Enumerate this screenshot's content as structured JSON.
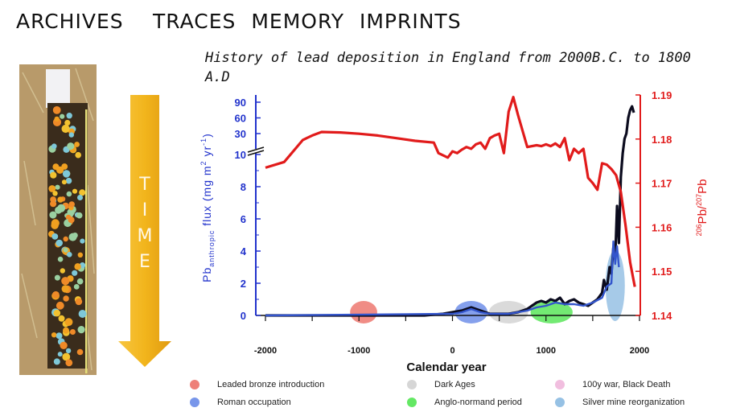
{
  "page": {
    "heading_archives": "ARCHIVES",
    "heading_traces": "TRACES MEMORY IMPRINTS",
    "time_arrow_letters": [
      "T",
      "I",
      "M",
      "E"
    ],
    "colors": {
      "arrow": "#f2b51c",
      "left_axis": "#2233cc",
      "right_axis": "#e11b1b",
      "flux_line": "#0b0b1e"
    },
    "photo_icon": "soil-core-photo"
  },
  "chart_data": {
    "type": "line",
    "title": "History of lead deposition in England  from 2000B.C. to 1800 A.D",
    "xlabel": "Calendar year",
    "xlim": [
      -2300,
      2000
    ],
    "xticks": [
      -2000,
      -1000,
      0,
      1000,
      2000
    ],
    "left_axis": {
      "label_main": "Pb",
      "label_sub": "anthropic",
      "label_rest": " flux (mg m",
      "label_sup1": "2",
      "label_rest2": " yr",
      "label_sup2": "-1",
      "label_end": ")",
      "lower_ticks": [
        0,
        2,
        4,
        6,
        8,
        10
      ],
      "upper_ticks": [
        30,
        60,
        90
      ],
      "break_between": [
        10,
        30
      ],
      "color": "#2233cc"
    },
    "right_axis": {
      "label_sup1": "206",
      "label_mid": "Pb/",
      "label_sup2": "207",
      "label_end": "Pb",
      "ylim": [
        1.14,
        1.19
      ],
      "ticks": [
        "1.14",
        "1.15",
        "1.16",
        "1.17",
        "1.18",
        "1.19"
      ],
      "color": "#e11b1b"
    },
    "series": [
      {
        "axis": "left",
        "color": "#0b0b1e",
        "x": [
          -2000,
          -1500,
          -1000,
          -500,
          -300,
          -100,
          0,
          100,
          200,
          300,
          400,
          500,
          600,
          700,
          800,
          850,
          900,
          950,
          1000,
          1050,
          1100,
          1150,
          1200,
          1250,
          1300,
          1350,
          1400,
          1450,
          1500,
          1550,
          1600,
          1620,
          1650,
          1680,
          1700,
          1720,
          1740,
          1760,
          1780,
          1800,
          1820,
          1840,
          1860,
          1880,
          1900,
          1920,
          1940
        ],
        "y": [
          0,
          0,
          0,
          0,
          0,
          0.1,
          0.2,
          0.3,
          0.5,
          0.3,
          0.1,
          0.1,
          0.1,
          0.2,
          0.4,
          0.6,
          0.8,
          0.9,
          0.8,
          1.0,
          0.9,
          1.1,
          0.7,
          0.9,
          1.0,
          0.8,
          0.7,
          0.6,
          0.8,
          1.0,
          1.4,
          2.2,
          1.6,
          3.0,
          2.6,
          4.2,
          3.5,
          6.8,
          4.5,
          8.6,
          11,
          25,
          30,
          60,
          75,
          82,
          70
        ]
      },
      {
        "axis": "left",
        "color": "#3355cc",
        "x": [
          -2000,
          0,
          100,
          200,
          300,
          400,
          600,
          800,
          900,
          1000,
          1100,
          1200,
          1300,
          1400,
          1500,
          1600,
          1650,
          1700,
          1720,
          1740,
          1760,
          1780
        ],
        "y": [
          0,
          0.1,
          0.2,
          0.4,
          0.2,
          0.1,
          0.1,
          0.3,
          0.5,
          0.6,
          0.8,
          0.7,
          0.7,
          0.6,
          0.8,
          1.1,
          1.8,
          2.0,
          4.6,
          3.2,
          4.3,
          3.0
        ]
      },
      {
        "axis": "right",
        "color": "#e11b1b",
        "x": [
          -2000,
          -1800,
          -1600,
          -1500,
          -1400,
          -1200,
          -1000,
          -800,
          -600,
          -400,
          -200,
          -150,
          -50,
          0,
          50,
          100,
          150,
          200,
          250,
          300,
          350,
          400,
          450,
          500,
          550,
          600,
          650,
          700,
          800,
          900,
          950,
          1000,
          1050,
          1100,
          1150,
          1200,
          1250,
          1300,
          1350,
          1400,
          1450,
          1500,
          1550,
          1600,
          1650,
          1700,
          1750,
          1800,
          1850,
          1900,
          1950
        ],
        "y": [
          1.1735,
          1.1748,
          1.1798,
          1.1808,
          1.1816,
          1.1815,
          1.1812,
          1.1808,
          1.1802,
          1.1796,
          1.1792,
          1.1768,
          1.1758,
          1.1772,
          1.1768,
          1.1776,
          1.1782,
          1.1778,
          1.1788,
          1.1792,
          1.1778,
          1.1802,
          1.1808,
          1.1812,
          1.1768,
          1.1862,
          1.1895,
          1.1855,
          1.1782,
          1.1786,
          1.1784,
          1.1788,
          1.1784,
          1.179,
          1.1782,
          1.1802,
          1.1752,
          1.1778,
          1.1768,
          1.1778,
          1.1712,
          1.17,
          1.1685,
          1.1745,
          1.1742,
          1.1732,
          1.1718,
          1.168,
          1.1605,
          1.152,
          1.1465
        ]
      }
    ],
    "periods": [
      {
        "name": "Leaded bronze introduction",
        "color": "#ee8078",
        "center": -950,
        "width": 290
      },
      {
        "name": "Roman occupation",
        "color": "#7896ea",
        "center": 200,
        "width": 350
      },
      {
        "name": "Dark Ages",
        "color": "#d6d6d6",
        "center": 600,
        "width": 420
      },
      {
        "name": "Anglo-normand period",
        "color": "#64e864",
        "center": 1060,
        "width": 450
      },
      {
        "name": "100y war, Black Death",
        "color": "#f1bedf",
        "center": 1480,
        "width": 0
      },
      {
        "name": "Silver mine reorganization",
        "color": "#96c1e4",
        "center": 1740,
        "width": 0
      }
    ],
    "legend": [
      {
        "label": "Leaded bronze introduction",
        "color": "#ee8078"
      },
      {
        "label": "Roman occupation",
        "color": "#7896ea"
      },
      {
        "label": "Dark Ages",
        "color": "#d6d6d6"
      },
      {
        "label": "Anglo-normand period",
        "color": "#64e864"
      },
      {
        "label": "100y war, Black Death",
        "color": "#f1bedf"
      },
      {
        "label": "Silver mine reorganization",
        "color": "#96c1e4"
      }
    ]
  }
}
